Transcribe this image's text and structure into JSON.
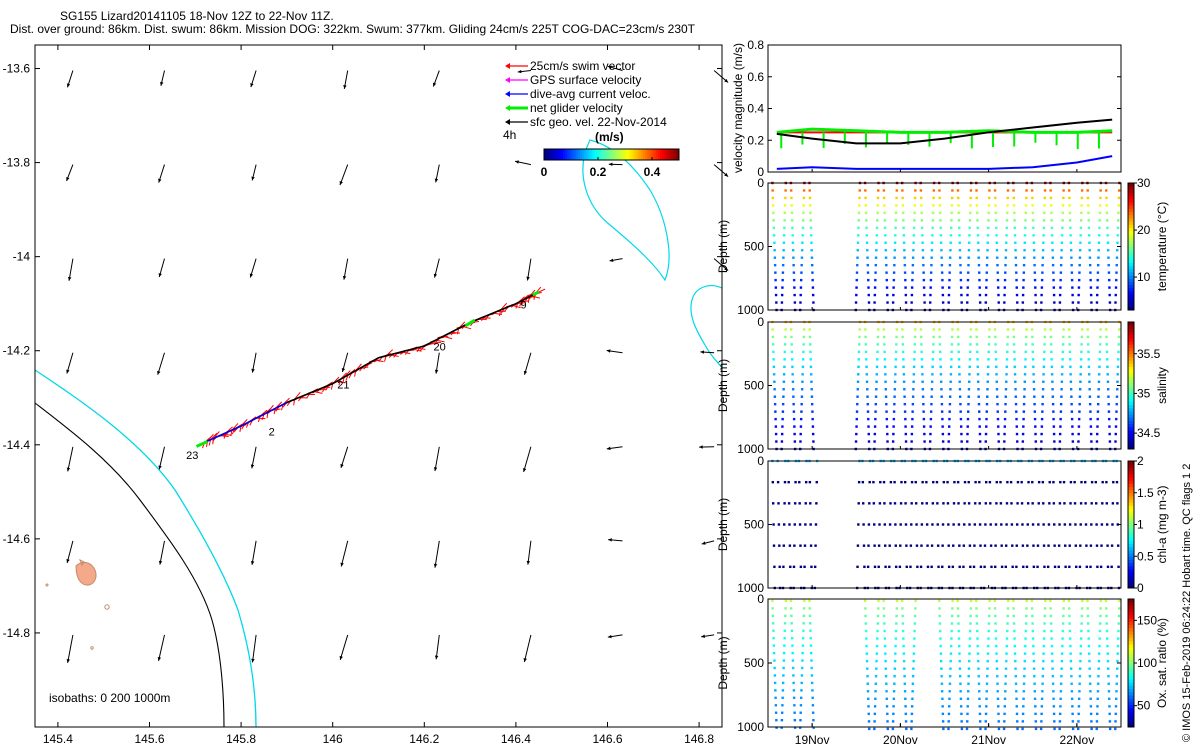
{
  "title": {
    "line1": "SG155 Lizard20141105 18-Nov 12Z to 22-Nov 11Z.",
    "line2": "Dist. over ground: 86km. Dist. swum: 86km. Mission DOG: 322km. Swum: 377km. Gliding 24cm/s 225T COG-DAC=23cm/s 230T"
  },
  "colors": {
    "swim_vector": "#ff0000",
    "gps_velocity": "#ff00ff",
    "dac": "#0000ff",
    "net_velocity": "#00ee00",
    "sfc_geo": "#000000",
    "isobath_0": "#c58b6b",
    "isobath_200": "#00d8e8",
    "isobath_1000": "#000000"
  },
  "chart_data": [
    {
      "type": "scatter",
      "kind": "map",
      "xlim": [
        145.35,
        146.85
      ],
      "ylim": [
        -15.0,
        -13.55
      ],
      "x_ticks": [
        "145.4",
        "145.6",
        "145.8",
        "146",
        "146.2",
        "146.4",
        "146.6",
        "146.8"
      ],
      "y_ticks": [
        "-13.6",
        "-13.8",
        "-14",
        "-14.2",
        "-14.4",
        "-14.6",
        "-14.8"
      ],
      "legend": {
        "placement": "top-right",
        "entries": [
          "25cm/s swim vector",
          "GPS surface velocity",
          "dive-avg current veloc.",
          "net glider velocity",
          "sfc geo. vel. 22-Nov-2014"
        ]
      },
      "colorbar": {
        "label": "(m/s)",
        "note": "4h",
        "ticks": [
          "0",
          "0.2",
          "0.4"
        ],
        "range": [
          0,
          0.5
        ]
      },
      "isobath_note": "isobaths: 0   200  1000m",
      "track": [
        [
          145.72,
          -14.395
        ],
        [
          145.8,
          -14.36
        ],
        [
          145.9,
          -14.31
        ],
        [
          146.0,
          -14.27
        ],
        [
          146.1,
          -14.215
        ],
        [
          146.2,
          -14.19
        ],
        [
          146.3,
          -14.14
        ],
        [
          146.4,
          -14.1
        ],
        [
          146.45,
          -14.075
        ]
      ],
      "day_labels": [
        {
          "label": "23",
          "lon": 145.68,
          "lat": -14.43
        },
        {
          "label": "2",
          "lon": 145.86,
          "lat": -14.38
        },
        {
          "label": "21",
          "lon": 146.01,
          "lat": -14.28
        },
        {
          "label": "20",
          "lon": 146.22,
          "lat": -14.2
        },
        {
          "label": "9",
          "lon": 146.41,
          "lat": -14.11
        }
      ],
      "geo_vectors_lon": [
        145.4,
        145.6,
        145.8,
        146.0,
        146.2,
        146.4,
        146.6,
        146.8
      ],
      "geo_vectors_lat": [
        -13.6,
        -13.8,
        -14.0,
        -14.2,
        -14.4,
        -14.6,
        -14.8
      ]
    },
    {
      "type": "line",
      "ylabel": "velocity magnitude (m/s)",
      "ylim": [
        0,
        0.8
      ],
      "y_ticks": [
        "0",
        "0.2",
        "0.4",
        "0.6",
        "0.8"
      ],
      "x_range_days": [
        18.5,
        22.5
      ],
      "series": [
        {
          "color": "#ff0000",
          "x": [
            18.6,
            19.0,
            19.5,
            20.0,
            20.5,
            21.0,
            21.5,
            22.0,
            22.4
          ],
          "values": [
            0.25,
            0.25,
            0.25,
            0.25,
            0.25,
            0.25,
            0.25,
            0.25,
            0.25
          ]
        },
        {
          "color": "#00ee00",
          "x": [
            18.6,
            19.0,
            19.5,
            20.0,
            20.5,
            21.0,
            21.5,
            22.0,
            22.4
          ],
          "values": [
            0.25,
            0.27,
            0.26,
            0.25,
            0.25,
            0.26,
            0.25,
            0.25,
            0.26
          ]
        },
        {
          "color": "#000000",
          "x": [
            18.6,
            19.0,
            19.5,
            20.0,
            20.5,
            21.0,
            21.5,
            22.0,
            22.4
          ],
          "values": [
            0.24,
            0.21,
            0.18,
            0.18,
            0.21,
            0.25,
            0.28,
            0.31,
            0.33
          ]
        },
        {
          "color": "#0000ff",
          "x": [
            18.6,
            19.0,
            19.5,
            20.0,
            20.5,
            21.0,
            21.5,
            22.0,
            22.4
          ],
          "values": [
            0.02,
            0.03,
            0.02,
            0.02,
            0.02,
            0.02,
            0.03,
            0.06,
            0.1
          ]
        }
      ]
    },
    {
      "type": "scatter",
      "ylabel": "Depth (m)",
      "y_ticks": [
        "0",
        "500",
        "1000"
      ],
      "cbar_label": "temperature (°C)",
      "cbar_ticks": [
        "10",
        "20",
        "30"
      ],
      "cbar_range": [
        3,
        30
      ],
      "surface_value": 29,
      "bottom_value": 4,
      "dot_shape": "dense"
    },
    {
      "type": "scatter",
      "ylabel": "Depth (m)",
      "y_ticks": [
        "0",
        "500",
        "1000"
      ],
      "cbar_label": "salinity",
      "cbar_ticks": [
        "34.5",
        "35",
        "35.5"
      ],
      "cbar_range": [
        34.3,
        35.9
      ],
      "surface_value": 35.4,
      "bottom_value": 34.4,
      "dot_shape": "dense"
    },
    {
      "type": "scatter",
      "ylabel": "Depth (m)",
      "y_ticks": [
        "0",
        "500",
        "1000"
      ],
      "cbar_label": "chl-a (mg m-3)",
      "cbar_ticks": [
        "0",
        "0.5",
        "1",
        "1.5",
        "2"
      ],
      "cbar_range": [
        0,
        2
      ],
      "surface_value": 0.1,
      "bottom_value": 0,
      "dot_shape": "sparse"
    },
    {
      "type": "scatter",
      "ylabel": "Depth (m)",
      "y_ticks": [
        "0",
        "500",
        "1000"
      ],
      "cbar_label": "Ox. sat. ratio (%)",
      "cbar_ticks": [
        "50",
        "100",
        "150"
      ],
      "cbar_range": [
        25,
        175
      ],
      "surface_value": 110,
      "bottom_value": 60,
      "dot_shape": "medium",
      "x_ticks": [
        "19Nov",
        "20Nov",
        "21Nov",
        "22Nov"
      ]
    }
  ],
  "side_note": "© IMOS 15-Feb-2019 06:24:22 Hobart time. QC flags 1  2"
}
